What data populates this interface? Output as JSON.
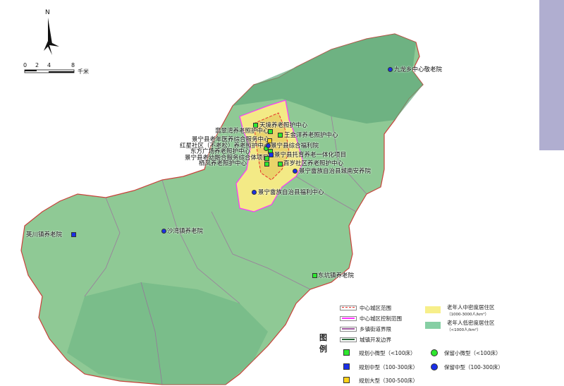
{
  "north_label": "N",
  "scale": {
    "ticks": [
      "0",
      "2",
      "4",
      "8"
    ],
    "unit": "千米"
  },
  "facilities": [
    {
      "name": "九龙乡中心敬老院",
      "type": "retained-medium"
    },
    {
      "name": "天境养老照护中心",
      "type": "planned-small"
    },
    {
      "name": "翡翠湾养老照护中心",
      "type": "planned-small"
    },
    {
      "name": "王金洋养老照护中心",
      "type": "planned-small"
    },
    {
      "name": "景宁县老年医养综合服务中心",
      "type": "planned-large"
    },
    {
      "name": "红星社区（不老松）养老照护中心",
      "type": "retained-small"
    },
    {
      "name": "景宁县综合福利院",
      "type": "retained-medium"
    },
    {
      "name": "东方广场养老照护中心",
      "type": "planned-small"
    },
    {
      "name": "景宁县托育养老一体化项目",
      "type": "planned-medium"
    },
    {
      "name": "景宁县老幼融合服务综合体项目",
      "type": "planned-small"
    },
    {
      "name": "栖凤养老照护中心",
      "type": "planned-small"
    },
    {
      "name": "百岁社区养老照护中心",
      "type": "planned-small"
    },
    {
      "name": "景宁畲族自治县城南安养院",
      "type": "retained-medium"
    },
    {
      "name": "景宁畲族自治县福利中心",
      "type": "retained-medium"
    },
    {
      "name": "英川镇养老院",
      "type": "planned-medium"
    },
    {
      "name": "沙湾镇养老院",
      "type": "retained-medium"
    },
    {
      "name": "东坑镇养老院",
      "type": "planned-small"
    }
  ],
  "legend": {
    "title": "图例",
    "lines": [
      {
        "label": "中心城区范围",
        "color": "#e8302a"
      },
      {
        "label": "中心城区控制范围",
        "color": "#ff33ff"
      },
      {
        "label": "乡镇街道界限",
        "color": "#a05aa0"
      },
      {
        "label": "城镇开发边界",
        "color": "#2a6a3a"
      }
    ],
    "areas": [
      {
        "label": "老年人中密度居住区",
        "sub": "（1000-3000人/km²）",
        "color": "#f7ef8a"
      },
      {
        "label": "老年人低密度居住区",
        "sub": "（<1000人/km²）",
        "color": "#86cfa4"
      }
    ],
    "markers": [
      {
        "label": "规划小微型（<100床）",
        "color": "#2ee82e",
        "shape": "square"
      },
      {
        "label": "规划中型（100-300床）",
        "color": "#1a2fe8",
        "shape": "square"
      },
      {
        "label": "规划大型（300-500床）",
        "color": "#ffd21a",
        "shape": "square"
      },
      {
        "label": "保留小微型（<100床）",
        "color": "#2ee82e",
        "shape": "circle"
      },
      {
        "label": "保留中型（100-300床）",
        "color": "#1a2fe8",
        "shape": "circle"
      }
    ]
  }
}
